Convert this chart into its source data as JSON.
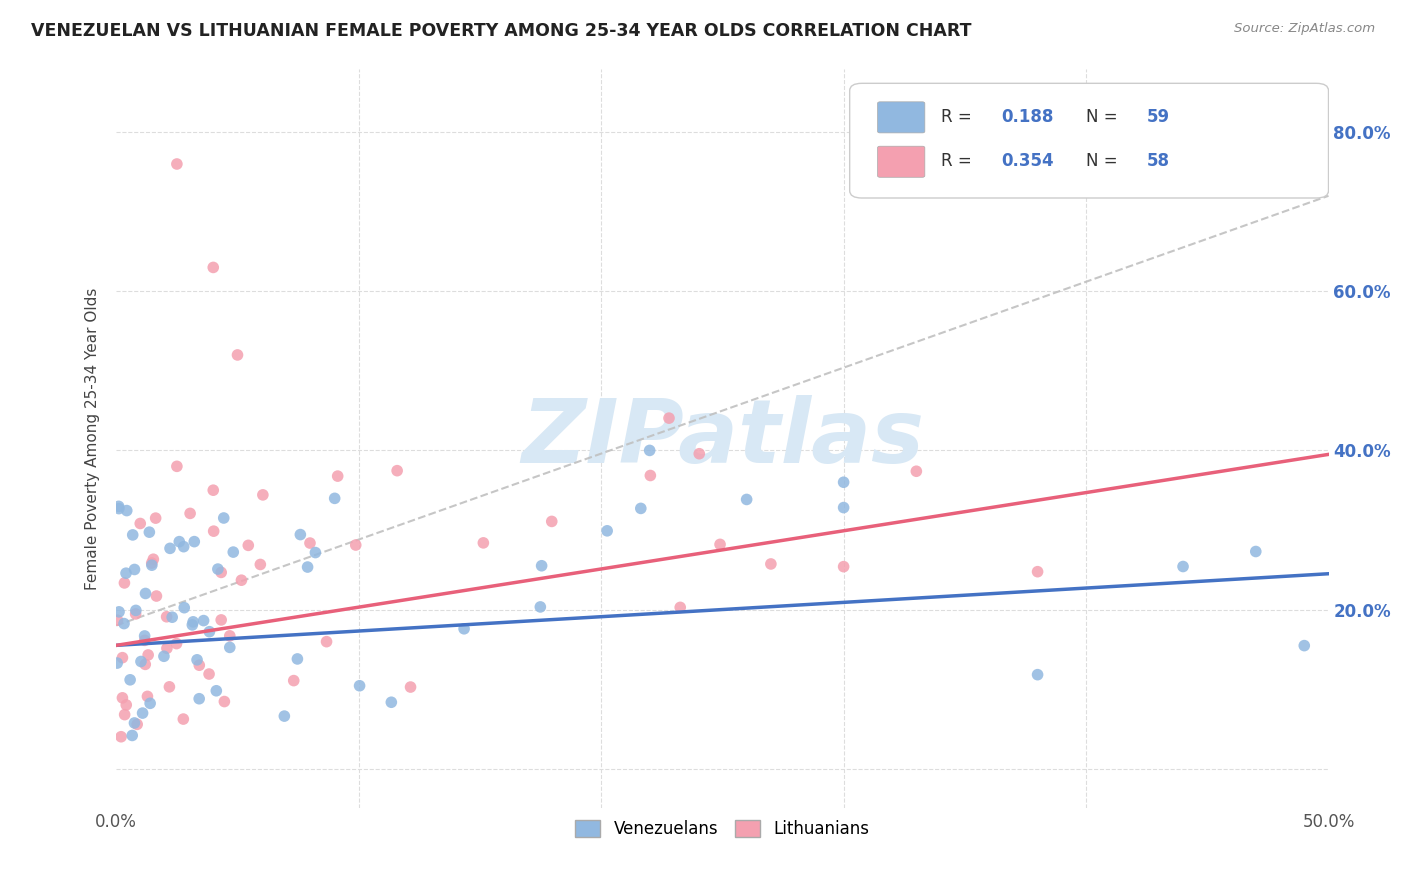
{
  "title": "VENEZUELAN VS LITHUANIAN FEMALE POVERTY AMONG 25-34 YEAR OLDS CORRELATION CHART",
  "source": "Source: ZipAtlas.com",
  "ylabel": "Female Poverty Among 25-34 Year Olds",
  "xlim": [
    0.0,
    0.5
  ],
  "ylim": [
    -0.05,
    0.88
  ],
  "xtick_vals": [
    0.0,
    0.1,
    0.2,
    0.3,
    0.4,
    0.5
  ],
  "xtick_labels": [
    "0.0%",
    "",
    "",
    "",
    "",
    "50.0%"
  ],
  "ytick_vals": [
    0.0,
    0.2,
    0.4,
    0.6,
    0.8
  ],
  "ytick_labels_right": [
    "",
    "20.0%",
    "40.0%",
    "60.0%",
    "80.0%"
  ],
  "venezuelan_color": "#91B8E0",
  "lithuanian_color": "#F4A0B0",
  "venezuelan_line_color": "#4472C4",
  "lithuanian_line_color": "#E8607A",
  "gray_dashed_color": "#C0C0C0",
  "watermark_text": "ZIPatlas",
  "watermark_color": "#D8E8F5",
  "legend_R_ven": "0.188",
  "legend_N_ven": "59",
  "legend_R_lit": "0.354",
  "legend_N_lit": "58",
  "label_color_blue": "#4472C4",
  "label_color_black": "#333333",
  "background_color": "#FFFFFF",
  "grid_color": "#DDDDDD",
  "ven_line_y0": 0.155,
  "ven_line_y1": 0.245,
  "lit_line_y0": 0.155,
  "lit_line_y1": 0.395,
  "gray_line_y0": 0.18,
  "gray_line_y1": 0.72
}
